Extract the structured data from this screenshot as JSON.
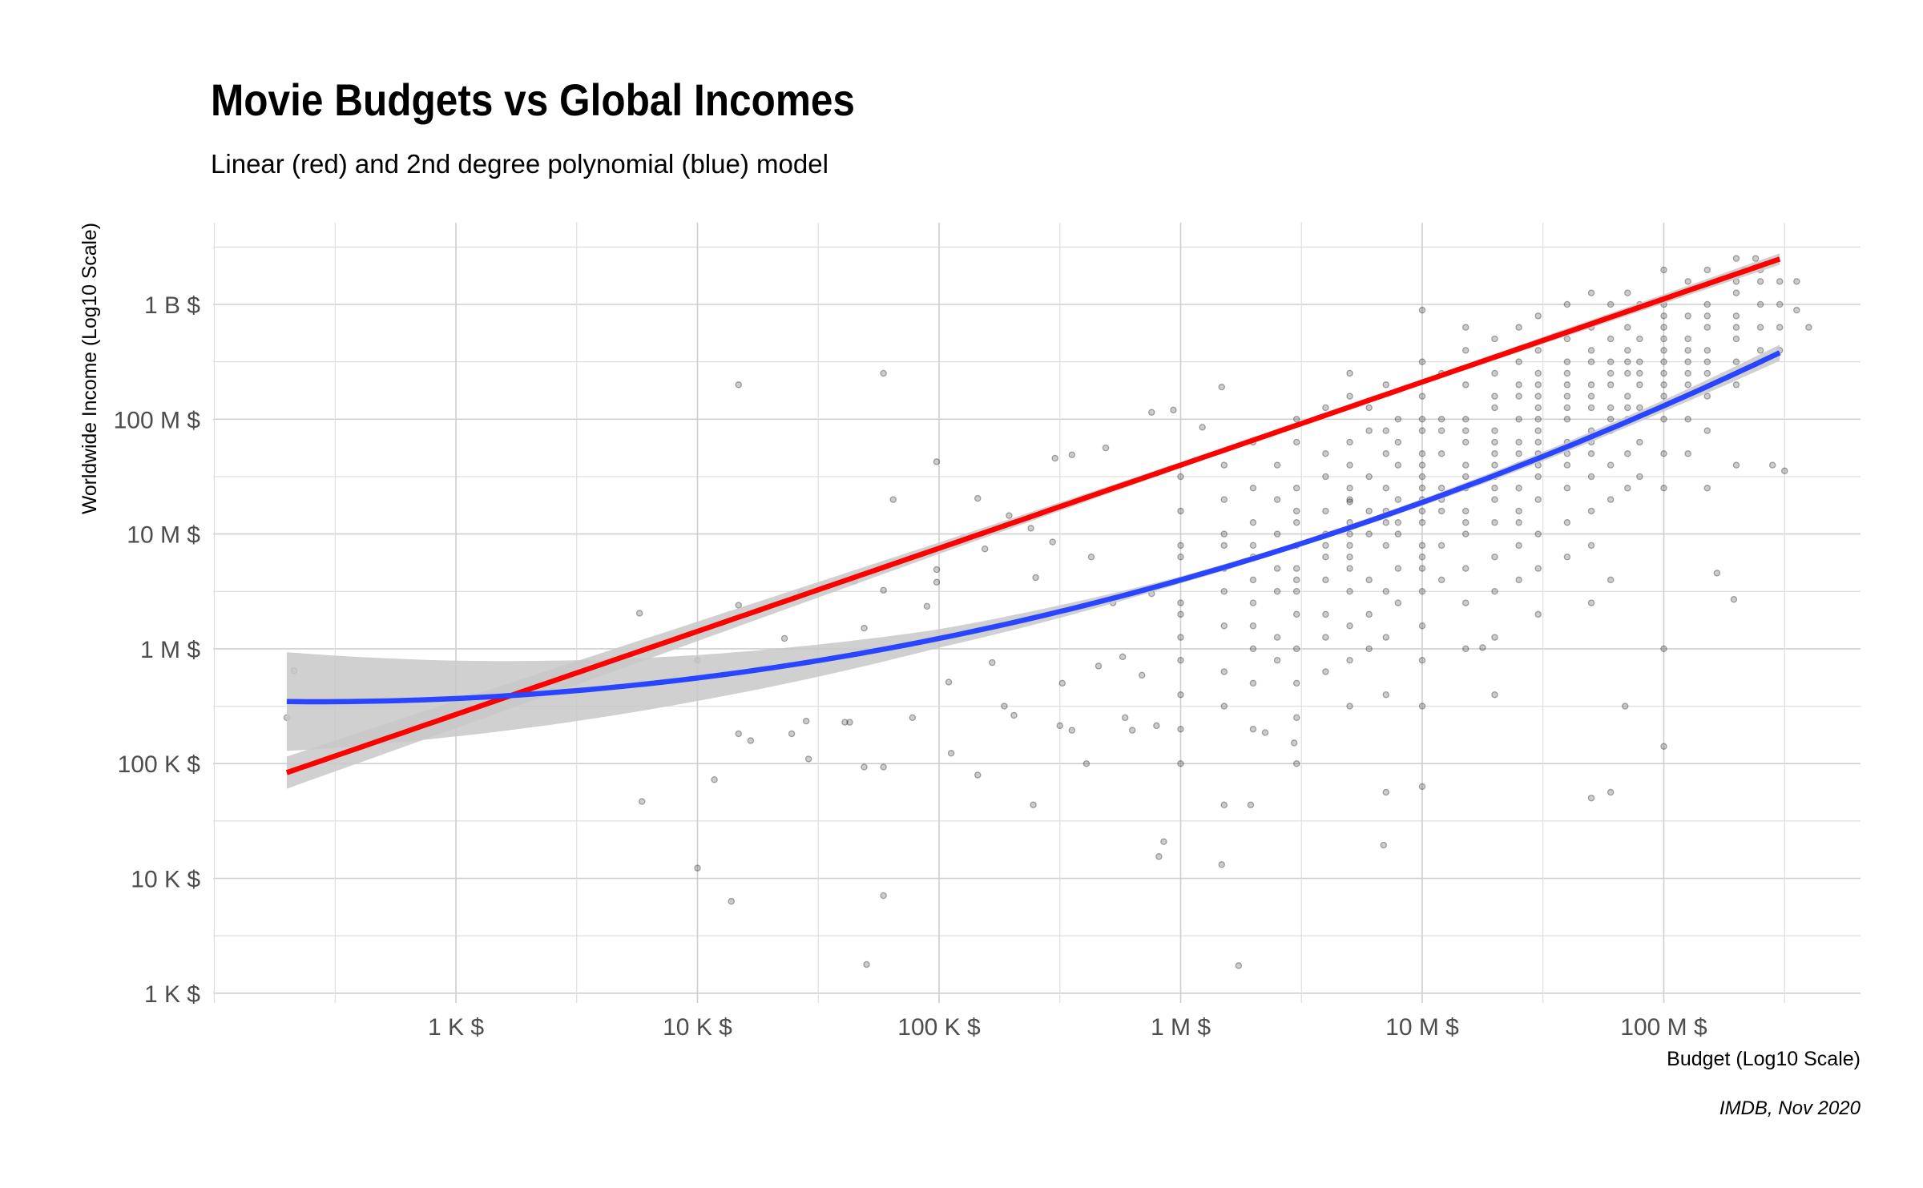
{
  "chart_data": {
    "type": "scatter",
    "title": "Movie Budgets vs Global Incomes",
    "subtitle": "Linear (red) and 2nd degree polynomial (blue) model",
    "xlabel": "Budget (Log10 Scale)",
    "ylabel": "Worldwide Income (Log10 Scale)",
    "caption": "IMDB, Nov 2020",
    "x_scale": "log10",
    "y_scale": "log10",
    "xlim_log10": [
      2.0,
      8.81
    ],
    "ylim_log10": [
      3.0,
      9.71
    ],
    "grid": true,
    "x_ticks": [
      {
        "log10": 3,
        "label": "1 K $"
      },
      {
        "log10": 4,
        "label": "10 K $"
      },
      {
        "log10": 5,
        "label": "100 K $"
      },
      {
        "log10": 6,
        "label": "1 M $"
      },
      {
        "log10": 7,
        "label": "10 M $"
      },
      {
        "log10": 8,
        "label": "100 M $"
      }
    ],
    "y_ticks": [
      {
        "log10": 3,
        "label": "1 K $"
      },
      {
        "log10": 4,
        "label": "10 K $"
      },
      {
        "log10": 5,
        "label": "100 K $"
      },
      {
        "log10": 6,
        "label": "1 M $"
      },
      {
        "log10": 7,
        "label": "10 M $"
      },
      {
        "log10": 8,
        "label": "100 M $"
      },
      {
        "log10": 9,
        "label": "1 B $"
      }
    ],
    "colors": {
      "linear": "#ff0000",
      "poly": "#2a45ff",
      "band": "#c8c8c8",
      "points": "#000000"
    },
    "models": [
      {
        "name": "Linear (red)",
        "color_key": "linear",
        "coef": [
          3.256,
          0.724,
          0
        ],
        "x_range_log10": [
          2.3,
          8.48
        ],
        "ci_halfwidth": {
          "x": [
            2.3,
            3,
            4,
            5,
            6,
            6.5,
            7,
            8,
            8.48
          ],
          "hw": [
            0.14,
            0.12,
            0.085,
            0.05,
            0.025,
            0.02,
            0.022,
            0.04,
            0.05
          ]
        }
      },
      {
        "name": "2nd degree polynomial (blue)",
        "color_key": "poly",
        "coef": [
          6.024,
          -0.4008,
          0.0828
        ],
        "x_range_log10": [
          2.3,
          8.48
        ],
        "ci_halfwidth": {
          "x": [
            2.3,
            3,
            4,
            5,
            6,
            6.5,
            7,
            8,
            8.48
          ],
          "hw": [
            0.43,
            0.33,
            0.2,
            0.08,
            0.03,
            0.025,
            0.03,
            0.05,
            0.07
          ]
        }
      }
    ],
    "points_log10": [
      [
        2.3,
        5.4
      ],
      [
        2.33,
        5.81
      ],
      [
        3.76,
        6.31
      ],
      [
        3.77,
        4.67
      ],
      [
        4.0,
        5.9
      ],
      [
        4.0,
        4.09
      ],
      [
        4.07,
        4.86
      ],
      [
        4.14,
        3.8
      ],
      [
        4.17,
        8.3
      ],
      [
        4.17,
        6.38
      ],
      [
        4.17,
        5.26
      ],
      [
        4.22,
        5.2
      ],
      [
        4.36,
        6.09
      ],
      [
        4.39,
        5.26
      ],
      [
        4.43,
        6.49
      ],
      [
        4.46,
        5.04
      ],
      [
        4.45,
        5.37
      ],
      [
        4.65,
        6.59
      ],
      [
        4.69,
        6.18
      ],
      [
        4.63,
        5.36
      ],
      [
        4.61,
        5.36
      ],
      [
        4.69,
        4.97
      ],
      [
        4.7,
        3.25
      ],
      [
        4.77,
        8.4
      ],
      [
        4.77,
        4.97
      ],
      [
        4.77,
        3.85
      ],
      [
        4.81,
        7.3
      ],
      [
        4.77,
        6.51
      ],
      [
        4.89,
        5.4
      ],
      [
        4.95,
        6.37
      ],
      [
        4.99,
        7.63
      ],
      [
        4.99,
        6.69
      ],
      [
        4.99,
        6.58
      ],
      [
        5.04,
        5.71
      ],
      [
        5.05,
        5.09
      ],
      [
        5.16,
        7.31
      ],
      [
        5.19,
        6.87
      ],
      [
        5.16,
        4.9
      ],
      [
        5.22,
        5.88
      ],
      [
        5.27,
        5.5
      ],
      [
        5.29,
        7.16
      ],
      [
        5.31,
        5.42
      ],
      [
        5.38,
        7.05
      ],
      [
        5.39,
        4.64
      ],
      [
        5.4,
        6.62
      ],
      [
        5.47,
        6.93
      ],
      [
        5.48,
        7.66
      ],
      [
        5.5,
        5.33
      ],
      [
        5.51,
        5.7
      ],
      [
        5.55,
        5.29
      ],
      [
        5.61,
        5.0
      ],
      [
        5.55,
        7.69
      ],
      [
        5.63,
        6.8
      ],
      [
        5.66,
        5.85
      ],
      [
        5.69,
        7.75
      ],
      [
        5.72,
        6.4
      ],
      [
        5.76,
        5.93
      ],
      [
        5.77,
        5.4
      ],
      [
        5.8,
        5.29
      ],
      [
        5.84,
        5.77
      ],
      [
        5.88,
        6.48
      ],
      [
        5.9,
        5.33
      ],
      [
        5.91,
        4.19
      ],
      [
        5.93,
        4.32
      ],
      [
        5.88,
        8.06
      ],
      [
        5.97,
        8.08
      ],
      [
        6.09,
        7.93
      ],
      [
        6.17,
        8.28
      ],
      [
        6.17,
        4.12
      ],
      [
        6.18,
        4.64
      ],
      [
        6.24,
        3.24
      ],
      [
        6.29,
        4.64
      ],
      [
        6.35,
        5.27
      ],
      [
        6.47,
        5.18
      ],
      [
        6.7,
        7.28
      ],
      [
        6.84,
        4.29
      ],
      [
        6.85,
        4.75
      ],
      [
        7.25,
        6.01
      ],
      [
        7.78,
        4.75
      ],
      [
        7.84,
        5.5
      ],
      [
        8.0,
        5.15
      ],
      [
        8.22,
        6.66
      ],
      [
        8.29,
        6.43
      ],
      [
        8.55,
        8.95
      ],
      [
        8.55,
        9.2
      ],
      [
        8.38,
        9.4
      ],
      [
        8.33,
        9.3
      ],
      [
        8.6,
        8.8
      ],
      [
        8.5,
        7.55
      ],
      [
        8.45,
        7.6
      ]
    ],
    "stripes_log10": [
      {
        "budget": 6.0,
        "incomes": [
          7.2,
          6.9,
          6.6,
          6.3,
          6.1,
          5.9,
          5.6,
          5.3,
          6.8,
          6.4,
          7.5,
          5.0
        ]
      },
      {
        "budget": 6.18,
        "incomes": [
          7.6,
          7.0,
          6.7,
          6.5,
          6.2,
          5.8,
          6.9,
          5.5,
          7.3
        ]
      },
      {
        "budget": 6.3,
        "incomes": [
          7.1,
          6.8,
          6.6,
          6.4,
          6.0,
          7.4,
          5.7,
          6.2,
          6.9,
          5.3,
          7.8
        ]
      },
      {
        "budget": 6.4,
        "incomes": [
          7.0,
          6.5,
          6.7,
          7.3,
          6.1,
          5.9,
          7.6
        ]
      },
      {
        "budget": 6.48,
        "incomes": [
          7.8,
          7.4,
          7.1,
          6.9,
          6.7,
          6.5,
          6.3,
          6.0,
          5.7,
          5.4,
          7.2,
          6.6,
          8.0,
          5.0
        ]
      },
      {
        "budget": 6.6,
        "incomes": [
          7.5,
          7.2,
          7.0,
          6.8,
          6.6,
          6.3,
          6.1,
          7.7,
          5.8,
          8.1,
          6.9
        ]
      },
      {
        "budget": 6.7,
        "incomes": [
          8.2,
          7.8,
          7.6,
          7.3,
          7.1,
          6.9,
          6.7,
          6.5,
          6.2,
          5.9,
          5.5,
          7.4,
          7.0,
          6.8,
          8.4
        ]
      },
      {
        "budget": 6.78,
        "incomes": [
          7.9,
          7.5,
          7.2,
          7.0,
          6.6,
          6.3,
          8.1,
          6.0
        ]
      },
      {
        "budget": 6.85,
        "incomes": [
          8.3,
          7.7,
          7.4,
          7.2,
          6.9,
          6.5,
          6.1,
          7.1,
          5.6,
          7.9
        ]
      },
      {
        "budget": 6.9,
        "incomes": [
          8.0,
          7.6,
          7.3,
          7.0,
          6.7,
          6.4,
          7.8,
          7.1
        ]
      },
      {
        "budget": 7.0,
        "incomes": [
          8.5,
          8.2,
          7.9,
          7.7,
          7.5,
          7.3,
          7.1,
          6.9,
          6.7,
          6.5,
          6.2,
          5.9,
          5.5,
          8.0,
          7.6,
          7.2,
          6.8,
          7.4,
          4.8,
          8.95
        ]
      },
      {
        "budget": 7.08,
        "incomes": [
          8.4,
          8.0,
          7.7,
          7.4,
          7.2,
          6.9,
          6.6,
          7.9,
          7.3
        ]
      },
      {
        "budget": 7.18,
        "incomes": [
          8.6,
          8.3,
          8.0,
          7.8,
          7.6,
          7.4,
          7.2,
          7.0,
          6.7,
          6.4,
          6.0,
          7.9,
          7.5,
          7.1,
          8.8
        ]
      },
      {
        "budget": 7.3,
        "incomes": [
          8.7,
          8.4,
          8.1,
          7.9,
          7.7,
          7.5,
          7.3,
          7.1,
          6.8,
          6.5,
          6.1,
          7.8,
          7.4,
          8.2,
          5.6,
          7.6
        ]
      },
      {
        "budget": 7.4,
        "incomes": [
          8.8,
          8.5,
          8.2,
          8.0,
          7.8,
          7.6,
          7.4,
          7.2,
          6.9,
          6.6,
          8.3,
          7.7,
          7.1
        ]
      },
      {
        "budget": 7.48,
        "incomes": [
          8.9,
          8.6,
          8.3,
          8.1,
          7.9,
          7.7,
          7.5,
          7.3,
          7.0,
          6.7,
          6.3,
          8.4,
          8.0,
          7.6,
          7.8,
          8.2
        ]
      },
      {
        "budget": 7.6,
        "incomes": [
          9.0,
          8.7,
          8.4,
          8.2,
          8.0,
          7.8,
          7.6,
          7.4,
          7.1,
          6.8,
          8.5,
          8.1,
          7.7,
          8.3
        ]
      },
      {
        "budget": 7.7,
        "incomes": [
          9.1,
          8.8,
          8.5,
          8.3,
          8.1,
          7.9,
          7.7,
          7.5,
          7.2,
          6.9,
          6.4,
          8.6,
          8.2,
          7.8,
          4.7
        ]
      },
      {
        "budget": 7.78,
        "incomes": [
          9.0,
          8.7,
          8.5,
          8.3,
          8.1,
          7.9,
          7.6,
          7.3,
          8.4,
          8.0,
          6.6
        ]
      },
      {
        "budget": 7.85,
        "incomes": [
          9.1,
          8.8,
          8.6,
          8.4,
          8.2,
          8.0,
          7.7,
          7.4,
          8.5,
          8.1
        ]
      },
      {
        "budget": 7.9,
        "incomes": [
          9.0,
          8.7,
          8.5,
          8.3,
          8.1,
          7.8,
          8.4,
          7.5
        ]
      },
      {
        "budget": 8.0,
        "incomes": [
          9.3,
          9.0,
          8.8,
          8.6,
          8.4,
          8.2,
          8.0,
          7.7,
          7.4,
          8.7,
          8.5,
          8.3,
          6.0,
          8.9
        ]
      },
      {
        "budget": 8.1,
        "incomes": [
          9.2,
          8.9,
          8.7,
          8.5,
          8.3,
          8.0,
          7.7,
          8.6,
          8.4
        ]
      },
      {
        "budget": 8.18,
        "incomes": [
          9.3,
          9.0,
          8.8,
          8.6,
          8.4,
          8.2,
          7.9,
          8.9,
          8.5,
          7.4
        ]
      },
      {
        "budget": 8.3,
        "incomes": [
          9.4,
          9.1,
          8.9,
          8.7,
          8.5,
          8.3,
          9.2,
          8.8,
          7.6
        ]
      },
      {
        "budget": 8.4,
        "incomes": [
          9.3,
          9.0,
          8.8,
          8.6,
          9.2,
          8.5
        ]
      },
      {
        "budget": 8.48,
        "incomes": [
          9.2,
          9.0,
          8.8,
          8.6
        ]
      }
    ]
  }
}
